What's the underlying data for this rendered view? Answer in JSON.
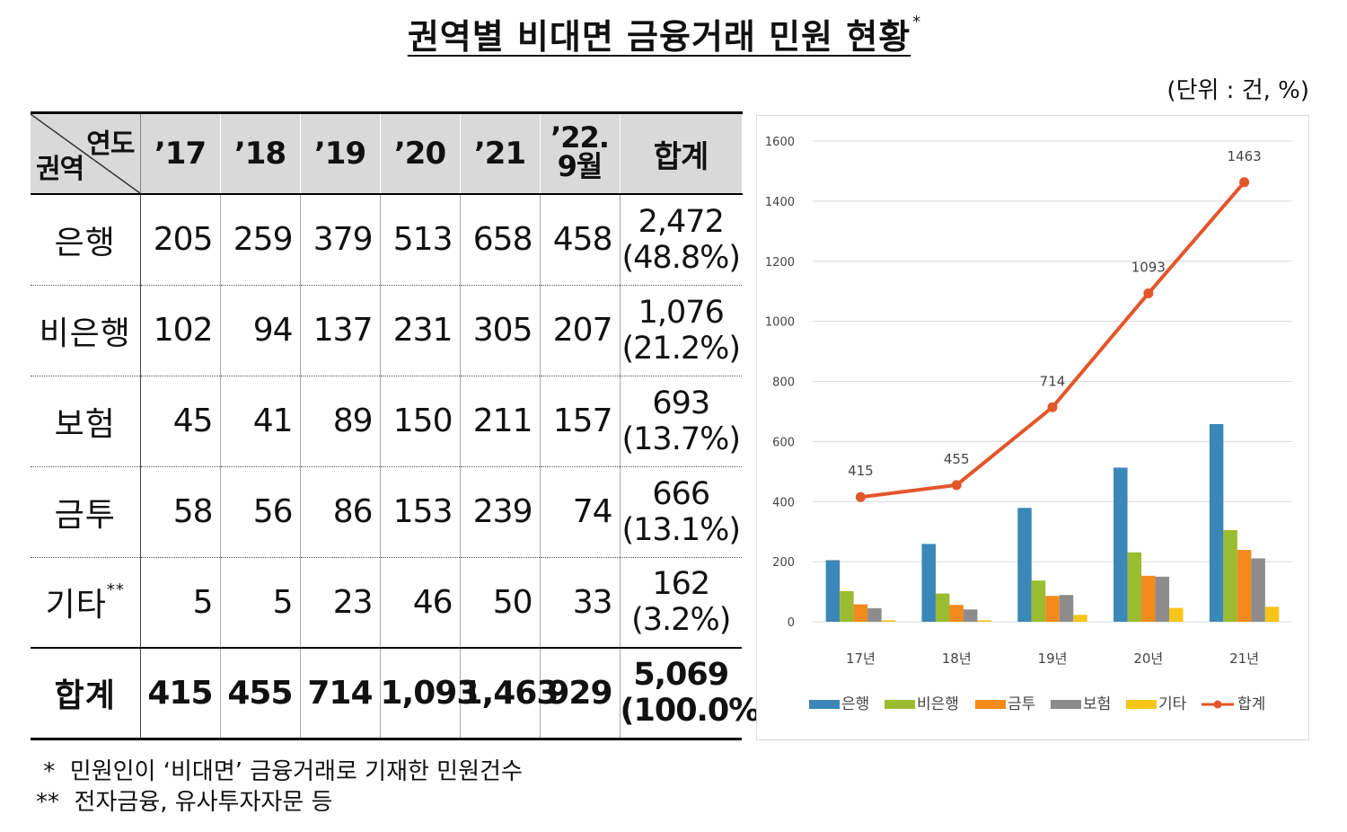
{
  "title": "권역별 비대면 금융거래 민원 현황",
  "title_mark": "*",
  "unit": "(단위 : 건, %)",
  "table": {
    "corner_top": "연도",
    "corner_bottom": "권역",
    "columns": [
      "’17",
      "’18",
      "’19",
      "’20",
      "’21"
    ],
    "col_last_line1": "’22.",
    "col_last_line2": "9월",
    "col_total": "합계",
    "rows": [
      {
        "label": "은행",
        "mark": "",
        "values": [
          "205",
          "259",
          "379",
          "513",
          "658",
          "458"
        ],
        "sum": "2,472",
        "share": "(48.8%)"
      },
      {
        "label": "비은행",
        "mark": "",
        "values": [
          "102",
          "94",
          "137",
          "231",
          "305",
          "207"
        ],
        "sum": "1,076",
        "share": "(21.2%)"
      },
      {
        "label": "보험",
        "mark": "",
        "values": [
          "45",
          "41",
          "89",
          "150",
          "211",
          "157"
        ],
        "sum": "693",
        "share": "(13.7%)"
      },
      {
        "label": "금투",
        "mark": "",
        "values": [
          "58",
          "56",
          "86",
          "153",
          "239",
          "74"
        ],
        "sum": "666",
        "share": "(13.1%)"
      },
      {
        "label": "기타",
        "mark": "**",
        "values": [
          "5",
          "5",
          "23",
          "46",
          "50",
          "33"
        ],
        "sum": "162",
        "share": "(3.2%)"
      }
    ],
    "total": {
      "label": "합계",
      "values": [
        "415",
        "455",
        "714",
        "1,093",
        "1,463",
        "929"
      ],
      "sum": "5,069",
      "share": "(100.0%)"
    }
  },
  "notes": [
    " *  민원인이 ‘비대면’ 금융거래로 기재한 민원건수",
    "**  전자금융, 유사투자자문 등"
  ],
  "chart_data": {
    "type": "bar",
    "categories": [
      "17년",
      "18년",
      "19년",
      "20년",
      "21년"
    ],
    "ylim": [
      0,
      1600
    ],
    "yticks": [
      0,
      200,
      400,
      600,
      800,
      1000,
      1200,
      1400,
      1600
    ],
    "grid": true,
    "legend": "bottom",
    "series": [
      {
        "name": "은행",
        "kind": "bar",
        "color": "#3b87b8",
        "values": [
          205,
          259,
          379,
          513,
          658
        ]
      },
      {
        "name": "비은행",
        "kind": "bar",
        "color": "#9bbb30",
        "values": [
          102,
          94,
          137,
          231,
          305
        ]
      },
      {
        "name": "금투",
        "kind": "bar",
        "color": "#f28a1c",
        "values": [
          58,
          56,
          86,
          153,
          239
        ]
      },
      {
        "name": "보험",
        "kind": "bar",
        "color": "#8c8c8c",
        "values": [
          45,
          41,
          89,
          150,
          211
        ]
      },
      {
        "name": "기타",
        "kind": "bar",
        "color": "#f5c518",
        "values": [
          5,
          5,
          23,
          46,
          50
        ]
      },
      {
        "name": "합계",
        "kind": "line",
        "color": "#e2562a",
        "values": [
          415,
          455,
          714,
          1093,
          1463
        ],
        "data_labels": [
          "415",
          "455",
          "714",
          "1093",
          "1463"
        ]
      }
    ]
  }
}
